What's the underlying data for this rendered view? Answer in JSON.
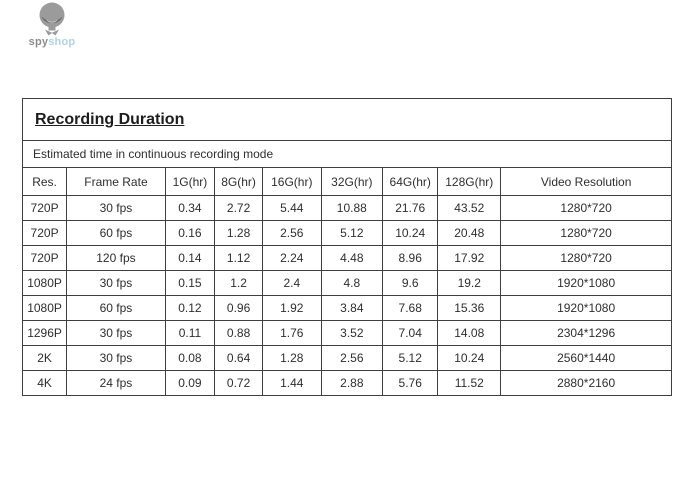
{
  "logo": {
    "brand_primary": "spy",
    "brand_secondary": "shop",
    "icon": "spy-mascot-icon"
  },
  "panel": {
    "title": "Recording Duration",
    "subtitle": "Estimated time in continuous recording mode"
  },
  "table": {
    "columns": [
      "Res.",
      "Frame Rate",
      "1G(hr)",
      "8G(hr)",
      "16G(hr)",
      "32G(hr)",
      "64G(hr)",
      "128G(hr)",
      "Video Resolution"
    ],
    "rows": [
      [
        "720P",
        "30 fps",
        "0.34",
        "2.72",
        "5.44",
        "10.88",
        "21.76",
        "43.52",
        "1280*720"
      ],
      [
        "720P",
        "60 fps",
        "0.16",
        "1.28",
        "2.56",
        "5.12",
        "10.24",
        "20.48",
        "1280*720"
      ],
      [
        "720P",
        "120 fps",
        "0.14",
        "1.12",
        "2.24",
        "4.48",
        "8.96",
        "17.92",
        "1280*720"
      ],
      [
        "1080P",
        "30 fps",
        "0.15",
        "1.2",
        "2.4",
        "4.8",
        "9.6",
        "19.2",
        "1920*1080"
      ],
      [
        "1080P",
        "60 fps",
        "0.12",
        "0.96",
        "1.92",
        "3.84",
        "7.68",
        "15.36",
        "1920*1080"
      ],
      [
        "1296P",
        "30 fps",
        "0.11",
        "0.88",
        "1.76",
        "3.52",
        "7.04",
        "14.08",
        "2304*1296"
      ],
      [
        "2K",
        "30 fps",
        "0.08",
        "0.64",
        "1.28",
        "2.56",
        "5.12",
        "10.24",
        "2560*1440"
      ],
      [
        "4K",
        "24 fps",
        "0.09",
        "0.72",
        "1.44",
        "2.88",
        "5.76",
        "11.52",
        "2880*2160"
      ]
    ]
  },
  "colors": {
    "border": "#3f3f3f",
    "text": "#2e2e2e",
    "brand_primary_gray": "#8d8d8d",
    "brand_secondary_blue": "#aed3e4",
    "mascot_gray": "#9b9b9b",
    "mascot_dark": "#6f6f6f"
  }
}
